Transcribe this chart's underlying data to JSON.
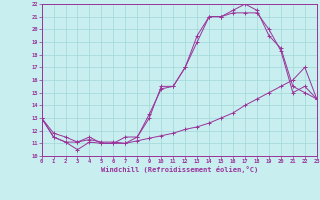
{
  "xlabel": "Windchill (Refroidissement éolien,°C)",
  "xlim": [
    0,
    23
  ],
  "ylim": [
    10,
    22
  ],
  "yticks": [
    10,
    11,
    12,
    13,
    14,
    15,
    16,
    17,
    18,
    19,
    20,
    21,
    22
  ],
  "xticks": [
    0,
    1,
    2,
    3,
    4,
    5,
    6,
    7,
    8,
    9,
    10,
    11,
    12,
    13,
    14,
    15,
    16,
    17,
    18,
    19,
    20,
    21,
    22,
    23
  ],
  "bg_color": "#c8eef0",
  "line_color": "#993399",
  "grid_color": "#a0d8d8",
  "curve1_x": [
    0,
    1,
    2,
    3,
    4,
    5,
    6,
    7,
    8,
    9,
    10,
    11,
    12,
    13,
    14,
    15,
    16,
    17,
    18,
    19,
    20,
    21,
    22,
    23
  ],
  "curve1_y": [
    13.0,
    11.5,
    11.1,
    10.5,
    11.1,
    11.0,
    11.0,
    11.5,
    11.5,
    13.3,
    15.3,
    15.5,
    17.0,
    19.0,
    21.0,
    21.0,
    21.5,
    22.0,
    21.5,
    19.5,
    18.5,
    15.5,
    15.0,
    14.5
  ],
  "curve2_x": [
    0,
    1,
    2,
    3,
    4,
    5,
    6,
    7,
    8,
    9,
    10,
    11,
    12,
    13,
    14,
    15,
    16,
    17,
    18,
    19,
    20,
    21,
    22,
    23
  ],
  "curve2_y": [
    13.0,
    11.5,
    11.1,
    11.1,
    11.5,
    11.0,
    11.0,
    11.0,
    11.5,
    13.0,
    15.5,
    15.5,
    17.0,
    19.5,
    21.0,
    21.0,
    21.3,
    21.3,
    21.3,
    20.0,
    18.3,
    15.0,
    15.5,
    14.5
  ],
  "curve3_x": [
    0,
    1,
    2,
    3,
    4,
    5,
    6,
    7,
    8,
    9,
    10,
    11,
    12,
    13,
    14,
    15,
    16,
    17,
    18,
    19,
    20,
    21,
    22,
    23
  ],
  "curve3_y": [
    13.0,
    11.8,
    11.5,
    11.1,
    11.3,
    11.1,
    11.1,
    11.0,
    11.2,
    11.4,
    11.6,
    11.8,
    12.1,
    12.3,
    12.6,
    13.0,
    13.4,
    14.0,
    14.5,
    15.0,
    15.5,
    16.0,
    17.0,
    14.5
  ]
}
